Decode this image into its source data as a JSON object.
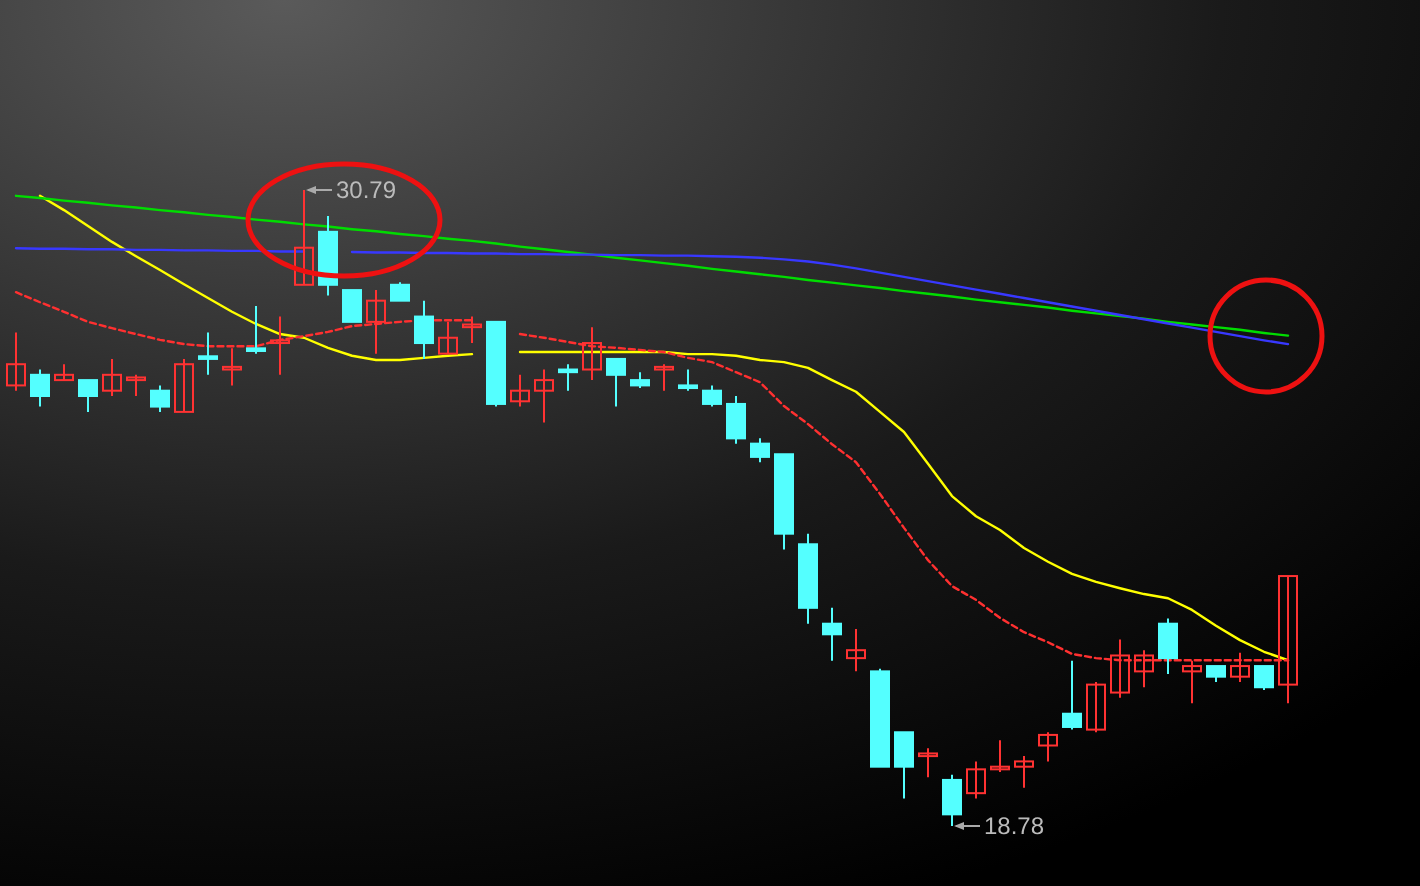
{
  "chart_data": {
    "type": "candlestick",
    "categories": [
      null,
      null,
      null,
      null,
      null,
      null,
      null,
      null,
      null,
      null,
      null,
      null,
      null,
      null,
      null,
      null,
      null,
      null,
      null,
      null,
      null,
      null,
      null,
      null,
      null,
      null,
      null,
      null,
      null,
      null,
      null,
      null,
      null,
      null,
      null,
      null,
      null,
      null,
      null,
      null,
      null,
      null,
      null,
      null,
      null,
      null,
      null,
      null,
      null,
      null,
      null,
      null,
      null,
      null
    ],
    "ohlc": [
      [
        27.1,
        28.1,
        27.0,
        27.5
      ],
      [
        27.3,
        27.4,
        26.7,
        26.9
      ],
      [
        27.2,
        27.5,
        27.2,
        27.3
      ],
      [
        27.2,
        27.2,
        26.6,
        26.9
      ],
      [
        27.0,
        27.6,
        26.9,
        27.3
      ],
      [
        27.2,
        27.3,
        26.9,
        27.25
      ],
      [
        27.0,
        27.1,
        26.6,
        26.7
      ],
      [
        26.6,
        27.6,
        26.6,
        27.5
      ],
      [
        27.65,
        28.1,
        27.3,
        27.6
      ],
      [
        27.4,
        27.8,
        27.1,
        27.45
      ],
      [
        27.8,
        28.6,
        27.7,
        27.75
      ],
      [
        27.9,
        28.4,
        27.3,
        27.95
      ],
      [
        29.0,
        30.79,
        29.0,
        29.7
      ],
      [
        30.0,
        30.3,
        28.8,
        29.0
      ],
      [
        28.9,
        28.9,
        28.3,
        28.3
      ],
      [
        28.3,
        28.9,
        27.7,
        28.7
      ],
      [
        29.0,
        29.05,
        28.7,
        28.7
      ],
      [
        28.4,
        28.7,
        27.6,
        27.9
      ],
      [
        27.7,
        28.3,
        27.7,
        28.0
      ],
      [
        28.2,
        28.4,
        27.9,
        28.25
      ],
      [
        28.3,
        28.3,
        26.7,
        26.75
      ],
      [
        26.8,
        27.3,
        26.7,
        27.0
      ],
      [
        27.0,
        27.4,
        26.4,
        27.2
      ],
      [
        27.4,
        27.5,
        27.0,
        27.35
      ],
      [
        27.4,
        28.2,
        27.2,
        27.9
      ],
      [
        27.6,
        27.6,
        26.7,
        27.3
      ],
      [
        27.2,
        27.35,
        27.05,
        27.1
      ],
      [
        27.4,
        27.5,
        27.0,
        27.45
      ],
      [
        27.1,
        27.4,
        27.0,
        27.05
      ],
      [
        27.0,
        27.1,
        26.7,
        26.75
      ],
      [
        26.75,
        26.9,
        26.0,
        26.1
      ],
      [
        26.0,
        26.1,
        25.65,
        25.75
      ],
      [
        25.8,
        25.8,
        24.0,
        24.3
      ],
      [
        24.1,
        24.3,
        22.6,
        22.9
      ],
      [
        22.6,
        22.9,
        21.9,
        22.4
      ],
      [
        21.95,
        22.5,
        21.7,
        22.1
      ],
      [
        21.7,
        21.75,
        19.9,
        19.9
      ],
      [
        20.55,
        20.55,
        19.3,
        19.9
      ],
      [
        20.1,
        20.25,
        19.7,
        20.15
      ],
      [
        19.65,
        19.75,
        18.78,
        19.0
      ],
      [
        19.4,
        20.0,
        19.3,
        19.85
      ],
      [
        19.85,
        20.4,
        19.8,
        19.9
      ],
      [
        19.9,
        20.1,
        19.5,
        20.0
      ],
      [
        20.3,
        20.55,
        20.0,
        20.5
      ],
      [
        20.9,
        21.9,
        20.6,
        20.65
      ],
      [
        20.6,
        21.5,
        20.55,
        21.45
      ],
      [
        21.3,
        22.3,
        21.2,
        22.0
      ],
      [
        21.7,
        22.1,
        21.4,
        22.0
      ],
      [
        22.6,
        22.7,
        21.65,
        21.95
      ],
      [
        21.7,
        21.9,
        21.1,
        21.8
      ],
      [
        21.8,
        21.8,
        21.5,
        21.6
      ],
      [
        21.6,
        22.05,
        21.5,
        21.8
      ],
      [
        21.8,
        21.8,
        21.35,
        21.4
      ],
      [
        21.45,
        23.5,
        21.1,
        23.5
      ]
    ],
    "series": [
      {
        "type": "line",
        "color": "#ffff00",
        "line_style": "solid",
        "values": [
          null,
          30.68,
          30.41,
          30.11,
          29.81,
          29.54,
          29.28,
          29.01,
          28.75,
          28.49,
          28.26,
          28.07,
          28.0,
          27.81,
          27.66,
          27.58,
          27.58,
          27.62,
          27.66,
          27.69,
          null,
          27.73,
          27.73,
          27.73,
          27.73,
          27.73,
          27.73,
          27.73,
          27.69,
          27.69,
          27.66,
          27.58,
          27.54,
          27.43,
          27.2,
          26.98,
          26.6,
          26.22,
          25.62,
          25.01,
          24.63,
          24.37,
          24.03,
          23.77,
          23.54,
          23.39,
          23.27,
          23.16,
          23.08,
          22.86,
          22.56,
          22.29,
          22.07,
          21.91
        ]
      },
      {
        "type": "line",
        "color": "#ff3030",
        "line_style": "dashed",
        "values": [
          28.86,
          28.67,
          28.49,
          28.3,
          28.18,
          28.07,
          27.96,
          27.88,
          27.84,
          27.84,
          27.84,
          27.96,
          28.03,
          28.11,
          28.22,
          28.26,
          28.3,
          28.33,
          28.33,
          28.33,
          null,
          28.07,
          28.0,
          27.92,
          27.84,
          27.81,
          27.77,
          27.73,
          27.62,
          27.54,
          27.35,
          27.16,
          26.71,
          26.37,
          25.99,
          25.65,
          25.05,
          24.41,
          23.8,
          23.31,
          23.05,
          22.71,
          22.44,
          22.25,
          22.03,
          21.95,
          21.91,
          21.91,
          21.91,
          21.91,
          21.91,
          21.91,
          21.91,
          21.91
        ]
      },
      {
        "type": "line",
        "color": "#00dd00",
        "line_style": "solid",
        "values": [
          30.68,
          30.64,
          30.59,
          30.55,
          30.5,
          30.46,
          30.41,
          30.37,
          30.32,
          30.28,
          30.23,
          30.19,
          30.14,
          30.1,
          30.05,
          30.01,
          29.96,
          29.92,
          29.87,
          29.83,
          29.78,
          29.72,
          29.67,
          29.62,
          29.57,
          29.51,
          29.46,
          29.41,
          29.36,
          29.3,
          29.25,
          29.2,
          29.15,
          29.09,
          29.04,
          28.99,
          28.94,
          28.88,
          28.83,
          28.78,
          28.72,
          28.67,
          28.62,
          28.57,
          28.51,
          28.46,
          28.41,
          28.36,
          28.3,
          28.25,
          28.2,
          28.15,
          28.09,
          28.04
        ]
      },
      {
        "type": "line",
        "color": "#3838ff",
        "line_style": "solid",
        "values": [
          29.69,
          29.68,
          29.68,
          29.67,
          29.67,
          29.66,
          29.66,
          29.65,
          29.65,
          29.64,
          29.64,
          29.63,
          29.63,
          null,
          29.62,
          29.61,
          29.61,
          29.6,
          29.6,
          29.59,
          29.59,
          29.58,
          29.58,
          29.57,
          29.57,
          29.56,
          29.56,
          29.55,
          29.55,
          29.54,
          29.53,
          29.51,
          29.48,
          29.44,
          29.38,
          29.31,
          29.23,
          29.15,
          29.07,
          28.99,
          28.91,
          28.83,
          28.75,
          28.67,
          28.59,
          28.51,
          28.43,
          28.35,
          28.27,
          28.19,
          28.11,
          28.03,
          27.95,
          27.88
        ]
      }
    ],
    "annotations": [
      "30.79",
      "18.78"
    ]
  }
}
